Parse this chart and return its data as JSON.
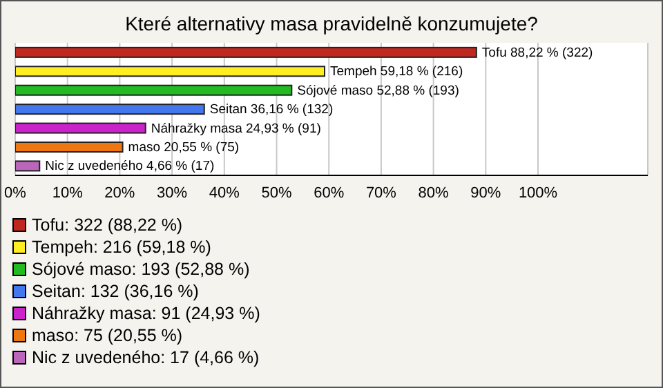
{
  "chart_data": {
    "type": "bar",
    "orientation": "horizontal",
    "stacked": true,
    "title": "Které alternativy masa pravidelně konzumujete?",
    "categories": [
      null,
      null,
      null,
      null,
      null,
      null,
      null
    ],
    "series": [
      {
        "name": "Tofu: 322 (88,22 %)",
        "color": "#c0281e",
        "values": [
          88.22,
          null,
          null,
          null,
          null,
          null,
          null
        ],
        "value_labels": [
          "Tofu 88,22 % (322)",
          null,
          null,
          null,
          null,
          null,
          null
        ]
      },
      {
        "name": "Tempeh: 216 (59,18 %)",
        "color": "#ffee22",
        "values": [
          null,
          59.18,
          null,
          null,
          null,
          null,
          null
        ],
        "value_labels": [
          null,
          "Tempeh 59,18 % (216)",
          null,
          null,
          null,
          null,
          null
        ]
      },
      {
        "name": "Sójové maso: 193 (52,88 %)",
        "color": "#22bb22",
        "values": [
          null,
          null,
          52.88,
          null,
          null,
          null,
          null
        ],
        "value_labels": [
          null,
          null,
          "Sójové maso 52,88 % (193)",
          null,
          null,
          null,
          null
        ]
      },
      {
        "name": "Seitan: 132 (36,16 %)",
        "color": "#4477ee",
        "values": [
          null,
          null,
          null,
          36.16,
          null,
          null,
          null
        ],
        "value_labels": [
          null,
          null,
          null,
          "Seitan 36,16 % (132)",
          null,
          null,
          null
        ]
      },
      {
        "name": "Náhražky masa: 91 (24,93 %)",
        "color": "#cc22cc",
        "values": [
          null,
          null,
          null,
          null,
          24.93,
          null,
          null
        ],
        "value_labels": [
          null,
          null,
          null,
          null,
          "Náhražky masa 24,93 % (91)",
          null,
          null
        ]
      },
      {
        "name": "maso: 75 (20,55 %)",
        "color": "#ee7711",
        "values": [
          null,
          null,
          null,
          null,
          null,
          20.55,
          null
        ],
        "value_labels": [
          null,
          null,
          null,
          null,
          null,
          "maso 20,55 % (75)",
          null
        ]
      },
      {
        "name": "Nic z uvedeného: 17 (4,66 %)",
        "color": "#bb66bb",
        "values": [
          null,
          null,
          null,
          null,
          null,
          null,
          4.66
        ],
        "value_labels": [
          null,
          null,
          null,
          null,
          null,
          null,
          "Nic z uvedeného 4,66 % (17)"
        ]
      }
    ],
    "xlim": [
      0,
      121
    ],
    "xticks": [
      {
        "value": 0,
        "label": "0%"
      },
      {
        "value": 10,
        "label": "10%"
      },
      {
        "value": 20,
        "label": "20%"
      },
      {
        "value": 30,
        "label": "30%"
      },
      {
        "value": 40,
        "label": "40%"
      },
      {
        "value": 50,
        "label": "50%"
      },
      {
        "value": 60,
        "label": "60%"
      },
      {
        "value": 70,
        "label": "70%"
      },
      {
        "value": 80,
        "label": "80%"
      },
      {
        "value": 90,
        "label": "90%"
      },
      {
        "value": 100,
        "label": "100%"
      }
    ],
    "grid": "x",
    "tick_labels": "x",
    "legend": "bottom"
  }
}
